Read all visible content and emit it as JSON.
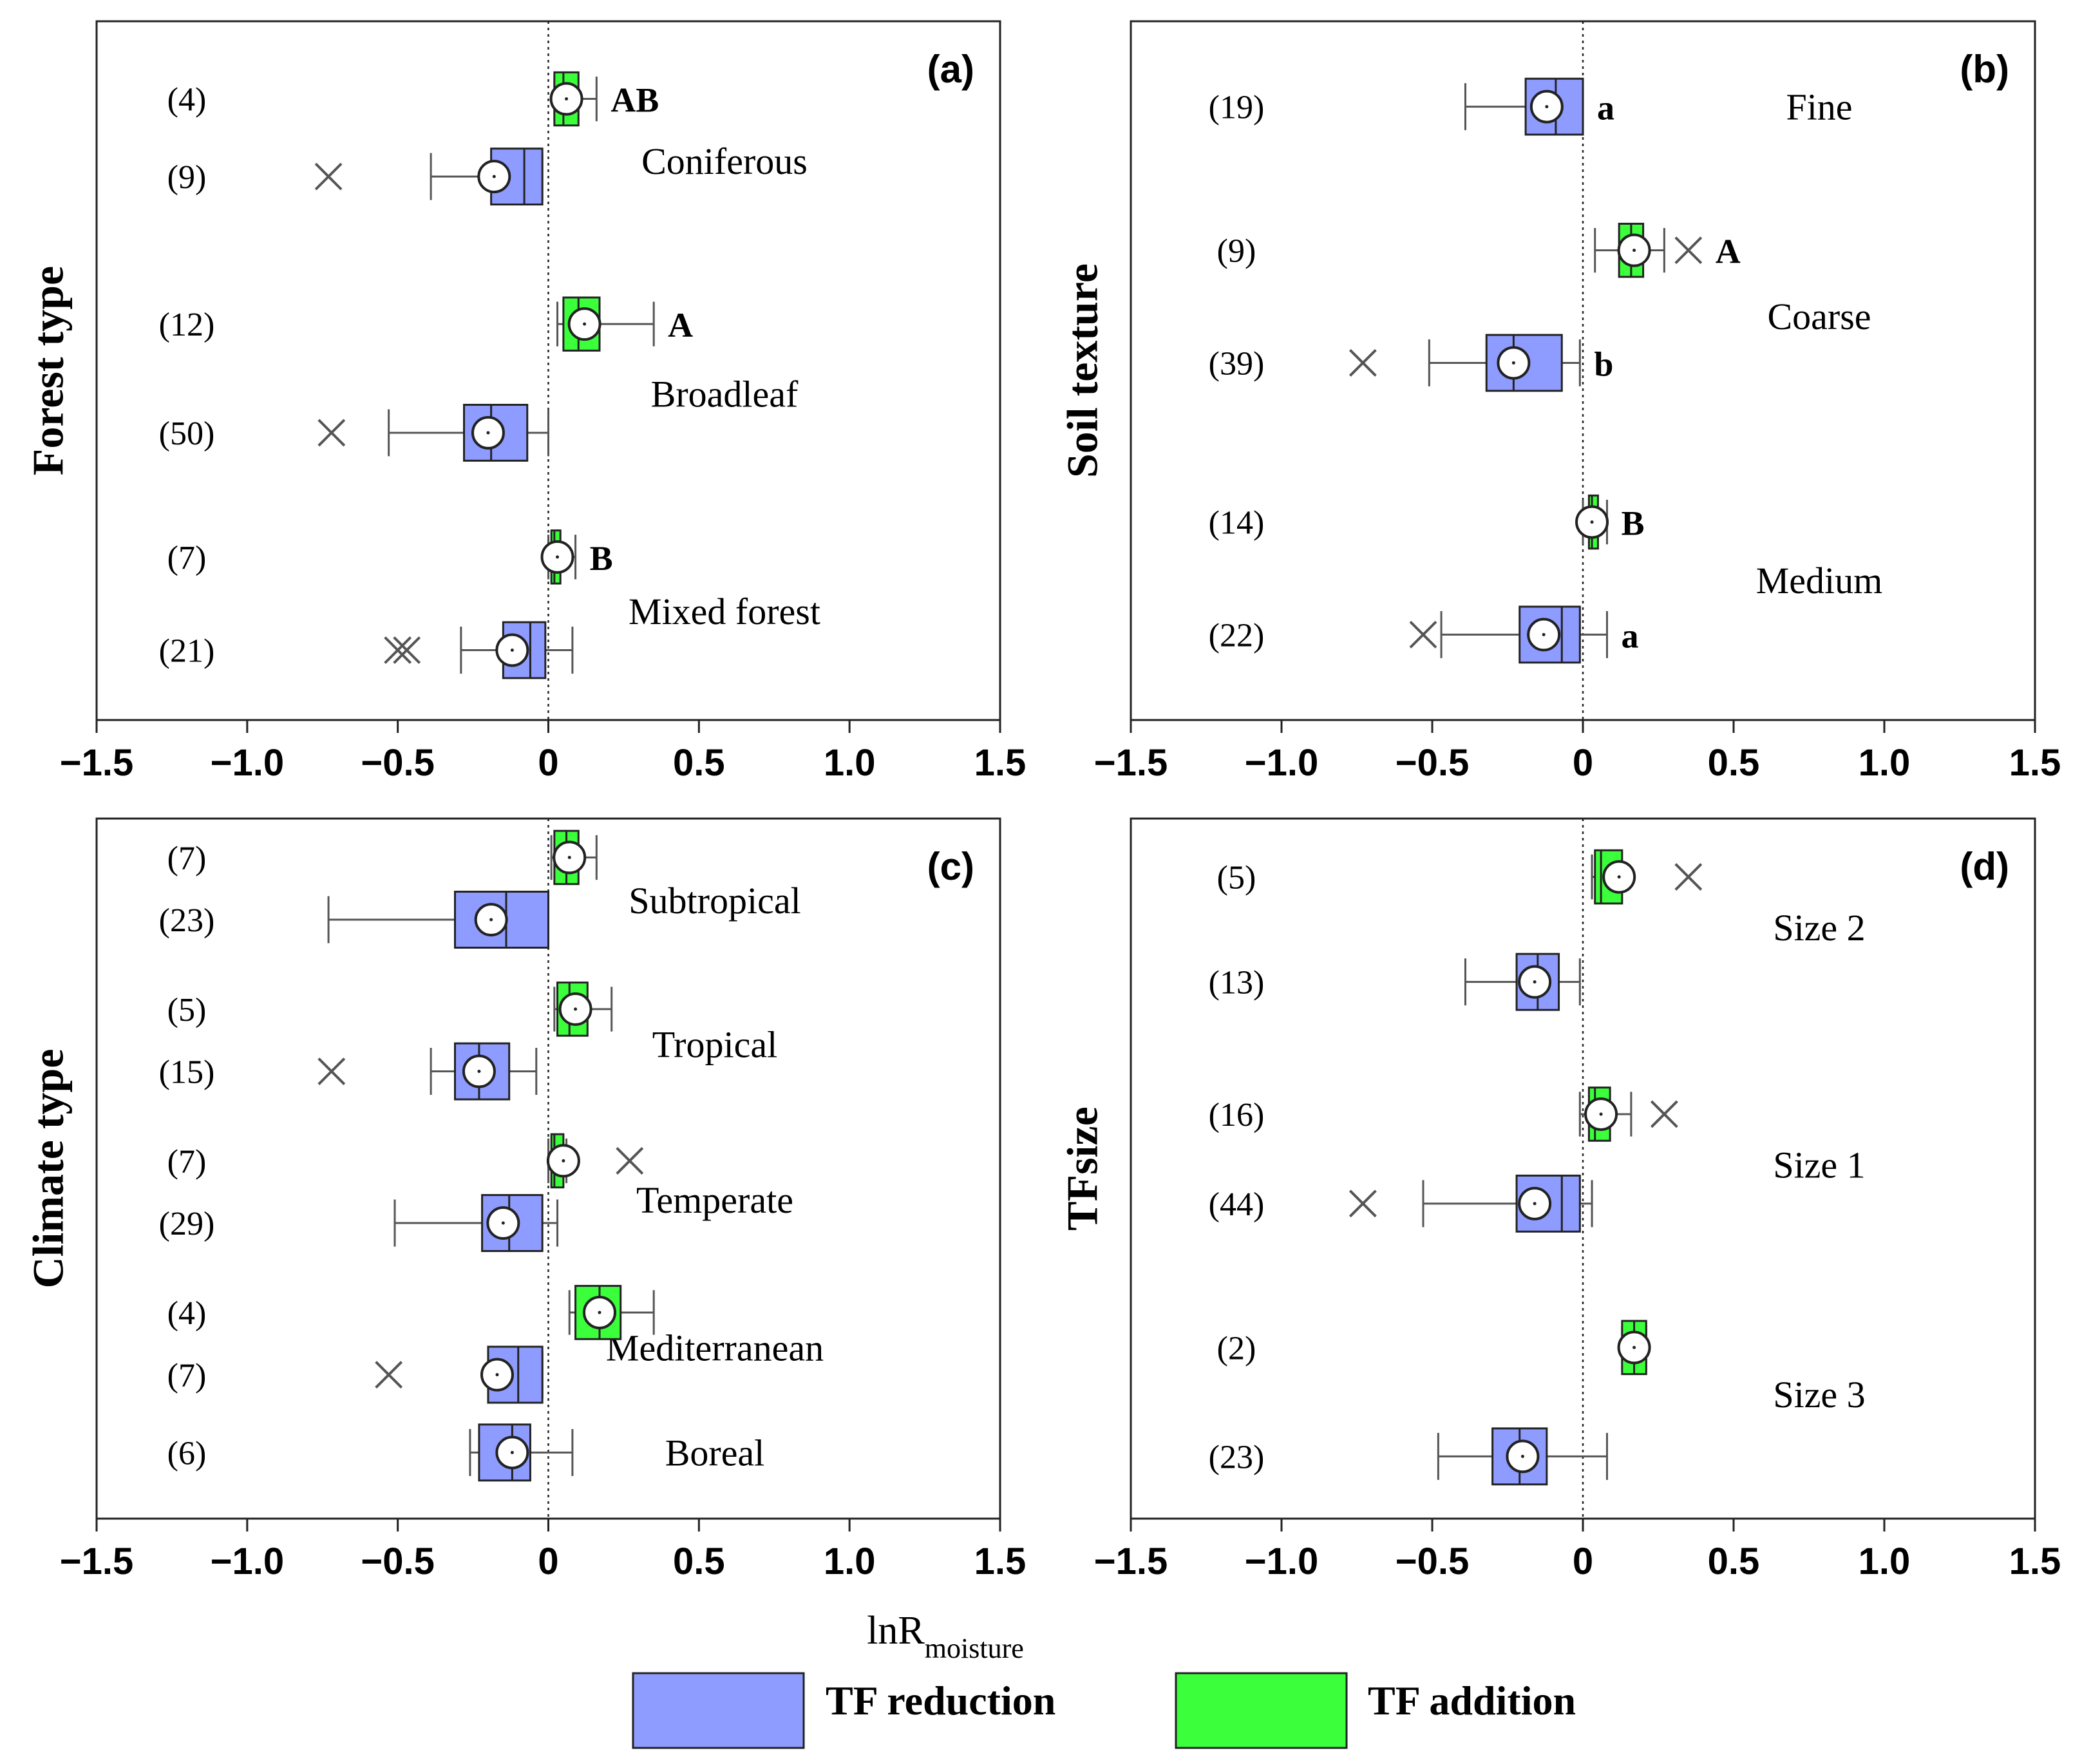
{
  "figure": {
    "xlabel_main": "lnR",
    "xlabel_sub": "moisture",
    "legend": [
      {
        "label": "TF reduction",
        "color": "#8f9cff"
      },
      {
        "label": "TF addition",
        "color": "#3cff3c"
      }
    ]
  },
  "colors": {
    "reduction": "#8f9cff",
    "addition": "#3cff3c",
    "outline": "#222222",
    "whisker": "#555555",
    "outlier": "#555555"
  },
  "chart_data": [
    {
      "type": "boxplot",
      "panel_label": "(a)",
      "ylabel": "Forest type",
      "xlim": [
        -1.5,
        1.5
      ],
      "xticks": [
        "−1.5",
        "−1.0",
        "−0.5",
        "0",
        "0.5",
        "1.0",
        "1.5"
      ],
      "xtick_values": [
        -1.5,
        -1.0,
        -0.5,
        0,
        0.5,
        1.0,
        1.5
      ],
      "groups": [
        {
          "name": "Coniferous",
          "label_row": 1.8,
          "boxes": [
            {
              "series": "addition",
              "row": 1,
              "n": "(4)",
              "q1": 0.02,
              "median": 0.05,
              "q3": 0.1,
              "wlo": 0.02,
              "whi": 0.16,
              "mean": 0.06,
              "outliers": [],
              "letter": "AB"
            },
            {
              "series": "reduction",
              "row": 2,
              "n": "(9)",
              "q1": -0.19,
              "median": -0.08,
              "q3": -0.02,
              "wlo": -0.39,
              "whi": -0.02,
              "mean": -0.18,
              "outliers": [
                -0.73
              ],
              "letter": ""
            }
          ]
        },
        {
          "name": "Broadleaf",
          "label_row": 4.8,
          "boxes": [
            {
              "series": "addition",
              "row": 3.9,
              "n": "(12)",
              "q1": 0.05,
              "median": 0.1,
              "q3": 0.17,
              "wlo": 0.03,
              "whi": 0.35,
              "mean": 0.12,
              "outliers": [],
              "letter": "A"
            },
            {
              "series": "reduction",
              "row": 5.3,
              "n": "(50)",
              "q1": -0.28,
              "median": -0.19,
              "q3": -0.07,
              "wlo": -0.53,
              "whi": 0.0,
              "mean": -0.2,
              "outliers": [
                -0.72
              ],
              "letter": ""
            }
          ]
        },
        {
          "name": "Mixed forest",
          "label_row": 7.6,
          "boxes": [
            {
              "series": "addition",
              "row": 6.9,
              "n": "(7)",
              "q1": 0.01,
              "median": 0.02,
              "q3": 0.04,
              "wlo": 0.0,
              "whi": 0.09,
              "mean": 0.03,
              "outliers": [],
              "letter": "B"
            },
            {
              "series": "reduction",
              "row": 8.1,
              "n": "(21)",
              "q1": -0.15,
              "median": -0.06,
              "q3": -0.01,
              "wlo": -0.29,
              "whi": 0.08,
              "mean": -0.12,
              "outliers": [
                -0.5,
                -0.47
              ],
              "letter": ""
            }
          ]
        }
      ]
    },
    {
      "type": "boxplot",
      "panel_label": "(b)",
      "ylabel": "Soil texture",
      "xlim": [
        -1.5,
        1.5
      ],
      "xticks": [
        "−1.5",
        "−1.0",
        "−0.5",
        "0",
        "0.5",
        "1.0",
        "1.5"
      ],
      "xtick_values": [
        -1.5,
        -1.0,
        -0.5,
        0,
        0.5,
        1.0,
        1.5
      ],
      "groups": [
        {
          "name": "Fine",
          "label_row": 1.1,
          "boxes": [
            {
              "series": "reduction",
              "row": 1.1,
              "n": "(19)",
              "q1": -0.19,
              "median": -0.09,
              "q3": 0.0,
              "wlo": -0.39,
              "whi": 0.0,
              "mean": -0.12,
              "outliers": [],
              "letter": "a"
            }
          ]
        },
        {
          "name": "Coarse",
          "label_row": 3.8,
          "boxes": [
            {
              "series": "addition",
              "row": 2.95,
              "n": "(9)",
              "q1": 0.12,
              "median": 0.16,
              "q3": 0.2,
              "wlo": 0.04,
              "whi": 0.27,
              "mean": 0.17,
              "outliers": [
                0.35
              ],
              "letter": "A"
            },
            {
              "series": "reduction",
              "row": 4.4,
              "n": "(39)",
              "q1": -0.32,
              "median": -0.23,
              "q3": -0.07,
              "wlo": -0.51,
              "whi": -0.01,
              "mean": -0.23,
              "outliers": [
                -0.73
              ],
              "letter": "b"
            }
          ]
        },
        {
          "name": "Medium",
          "label_row": 7.2,
          "boxes": [
            {
              "series": "addition",
              "row": 6.45,
              "n": "(14)",
              "q1": 0.02,
              "median": 0.03,
              "q3": 0.05,
              "wlo": 0.0,
              "whi": 0.08,
              "mean": 0.03,
              "outliers": [],
              "letter": "B"
            },
            {
              "series": "reduction",
              "row": 7.9,
              "n": "(22)",
              "q1": -0.21,
              "median": -0.07,
              "q3": -0.01,
              "wlo": -0.47,
              "whi": 0.08,
              "mean": -0.13,
              "outliers": [
                -0.53
              ],
              "letter": "a"
            }
          ]
        }
      ]
    },
    {
      "type": "boxplot",
      "panel_label": "(c)",
      "ylabel": "Climate type",
      "xlim": [
        -1.5,
        1.5
      ],
      "xticks": [
        "−1.5",
        "−1.0",
        "−0.5",
        "0",
        "0.5",
        "1.0",
        "1.5"
      ],
      "xtick_values": [
        -1.5,
        -1.0,
        -0.5,
        0,
        0.5,
        1.0,
        1.5
      ],
      "groups": [
        {
          "name": "Subtropical",
          "label_row": 1.05,
          "boxes": [
            {
              "series": "addition",
              "row": 0.5,
              "n": "(7)",
              "q1": 0.02,
              "median": 0.06,
              "q3": 0.1,
              "wlo": 0.01,
              "whi": 0.16,
              "mean": 0.07,
              "outliers": [],
              "letter": ""
            },
            {
              "series": "reduction",
              "row": 1.3,
              "n": "(23)",
              "q1": -0.31,
              "median": -0.14,
              "q3": 0.0,
              "wlo": -0.73,
              "whi": 0.0,
              "mean": -0.19,
              "outliers": [],
              "letter": ""
            }
          ]
        },
        {
          "name": "Tropical",
          "label_row": 2.9,
          "boxes": [
            {
              "series": "addition",
              "row": 2.45,
              "n": "(5)",
              "q1": 0.03,
              "median": 0.07,
              "q3": 0.13,
              "wlo": 0.02,
              "whi": 0.21,
              "mean": 0.09,
              "outliers": [],
              "letter": ""
            },
            {
              "series": "reduction",
              "row": 3.25,
              "n": "(15)",
              "q1": -0.31,
              "median": -0.23,
              "q3": -0.13,
              "wlo": -0.39,
              "whi": -0.04,
              "mean": -0.23,
              "outliers": [
                -0.72
              ],
              "letter": ""
            }
          ]
        },
        {
          "name": "Temperate",
          "label_row": 4.9,
          "boxes": [
            {
              "series": "addition",
              "row": 4.4,
              "n": "(7)",
              "q1": 0.01,
              "median": 0.02,
              "q3": 0.05,
              "wlo": 0.0,
              "whi": 0.06,
              "mean": 0.05,
              "outliers": [
                0.27
              ],
              "letter": ""
            },
            {
              "series": "reduction",
              "row": 5.2,
              "n": "(29)",
              "q1": -0.22,
              "median": -0.13,
              "q3": -0.02,
              "wlo": -0.51,
              "whi": 0.03,
              "mean": -0.15,
              "outliers": [],
              "letter": ""
            }
          ]
        },
        {
          "name": "Mediterranean",
          "label_row": 6.8,
          "boxes": [
            {
              "series": "addition",
              "row": 6.35,
              "n": "(4)",
              "q1": 0.09,
              "median": 0.17,
              "q3": 0.24,
              "wlo": 0.07,
              "whi": 0.35,
              "mean": 0.17,
              "outliers": [],
              "letter": ""
            },
            {
              "series": "reduction",
              "row": 7.15,
              "n": "(7)",
              "q1": -0.2,
              "median": -0.1,
              "q3": -0.02,
              "wlo": -0.02,
              "whi": -0.02,
              "mean": -0.17,
              "outliers": [
                -0.53
              ],
              "letter": ""
            }
          ]
        },
        {
          "name": "Boreal",
          "label_row": 8.15,
          "boxes": [
            {
              "series": "reduction",
              "row": 8.15,
              "n": "(6)",
              "q1": -0.23,
              "median": -0.12,
              "q3": -0.06,
              "wlo": -0.26,
              "whi": 0.08,
              "mean": -0.12,
              "outliers": [],
              "letter": ""
            }
          ]
        }
      ]
    },
    {
      "type": "boxplot",
      "panel_label": "(d)",
      "ylabel": "TFsize",
      "xlim": [
        -1.5,
        1.5
      ],
      "xticks": [
        "−1.5",
        "−1.0",
        "−0.5",
        "0",
        "0.5",
        "1.0",
        "1.5"
      ],
      "xtick_values": [
        -1.5,
        -1.0,
        -0.5,
        0,
        0.5,
        1.0,
        1.5
      ],
      "groups": [
        {
          "name": "Size 2",
          "label_row": 1.4,
          "boxes": [
            {
              "series": "addition",
              "row": 0.75,
              "n": "(5)",
              "q1": 0.04,
              "median": 0.06,
              "q3": 0.13,
              "wlo": 0.03,
              "whi": 0.03,
              "mean": 0.12,
              "outliers": [
                0.35
              ],
              "letter": ""
            },
            {
              "series": "reduction",
              "row": 2.1,
              "n": "(13)",
              "q1": -0.22,
              "median": -0.15,
              "q3": -0.08,
              "wlo": -0.39,
              "whi": -0.01,
              "mean": -0.16,
              "outliers": [],
              "letter": ""
            }
          ]
        },
        {
          "name": "Size 1",
          "label_row": 4.45,
          "boxes": [
            {
              "series": "addition",
              "row": 3.8,
              "n": "(16)",
              "q1": 0.02,
              "median": 0.04,
              "q3": 0.09,
              "wlo": -0.01,
              "whi": 0.16,
              "mean": 0.06,
              "outliers": [
                0.27
              ],
              "letter": ""
            },
            {
              "series": "reduction",
              "row": 4.95,
              "n": "(44)",
              "q1": -0.22,
              "median": -0.07,
              "q3": -0.01,
              "wlo": -0.53,
              "whi": 0.03,
              "mean": -0.16,
              "outliers": [
                -0.73
              ],
              "letter": ""
            }
          ]
        },
        {
          "name": "Size 3",
          "label_row": 7.4,
          "boxes": [
            {
              "series": "addition",
              "row": 6.8,
              "n": "(2)",
              "q1": 0.13,
              "median": 0.17,
              "q3": 0.21,
              "wlo": 0.13,
              "whi": 0.21,
              "mean": 0.17,
              "outliers": [],
              "letter": ""
            },
            {
              "series": "reduction",
              "row": 8.2,
              "n": "(23)",
              "q1": -0.3,
              "median": -0.21,
              "q3": -0.12,
              "wlo": -0.48,
              "whi": 0.08,
              "mean": -0.2,
              "outliers": [],
              "letter": ""
            }
          ]
        }
      ]
    }
  ]
}
